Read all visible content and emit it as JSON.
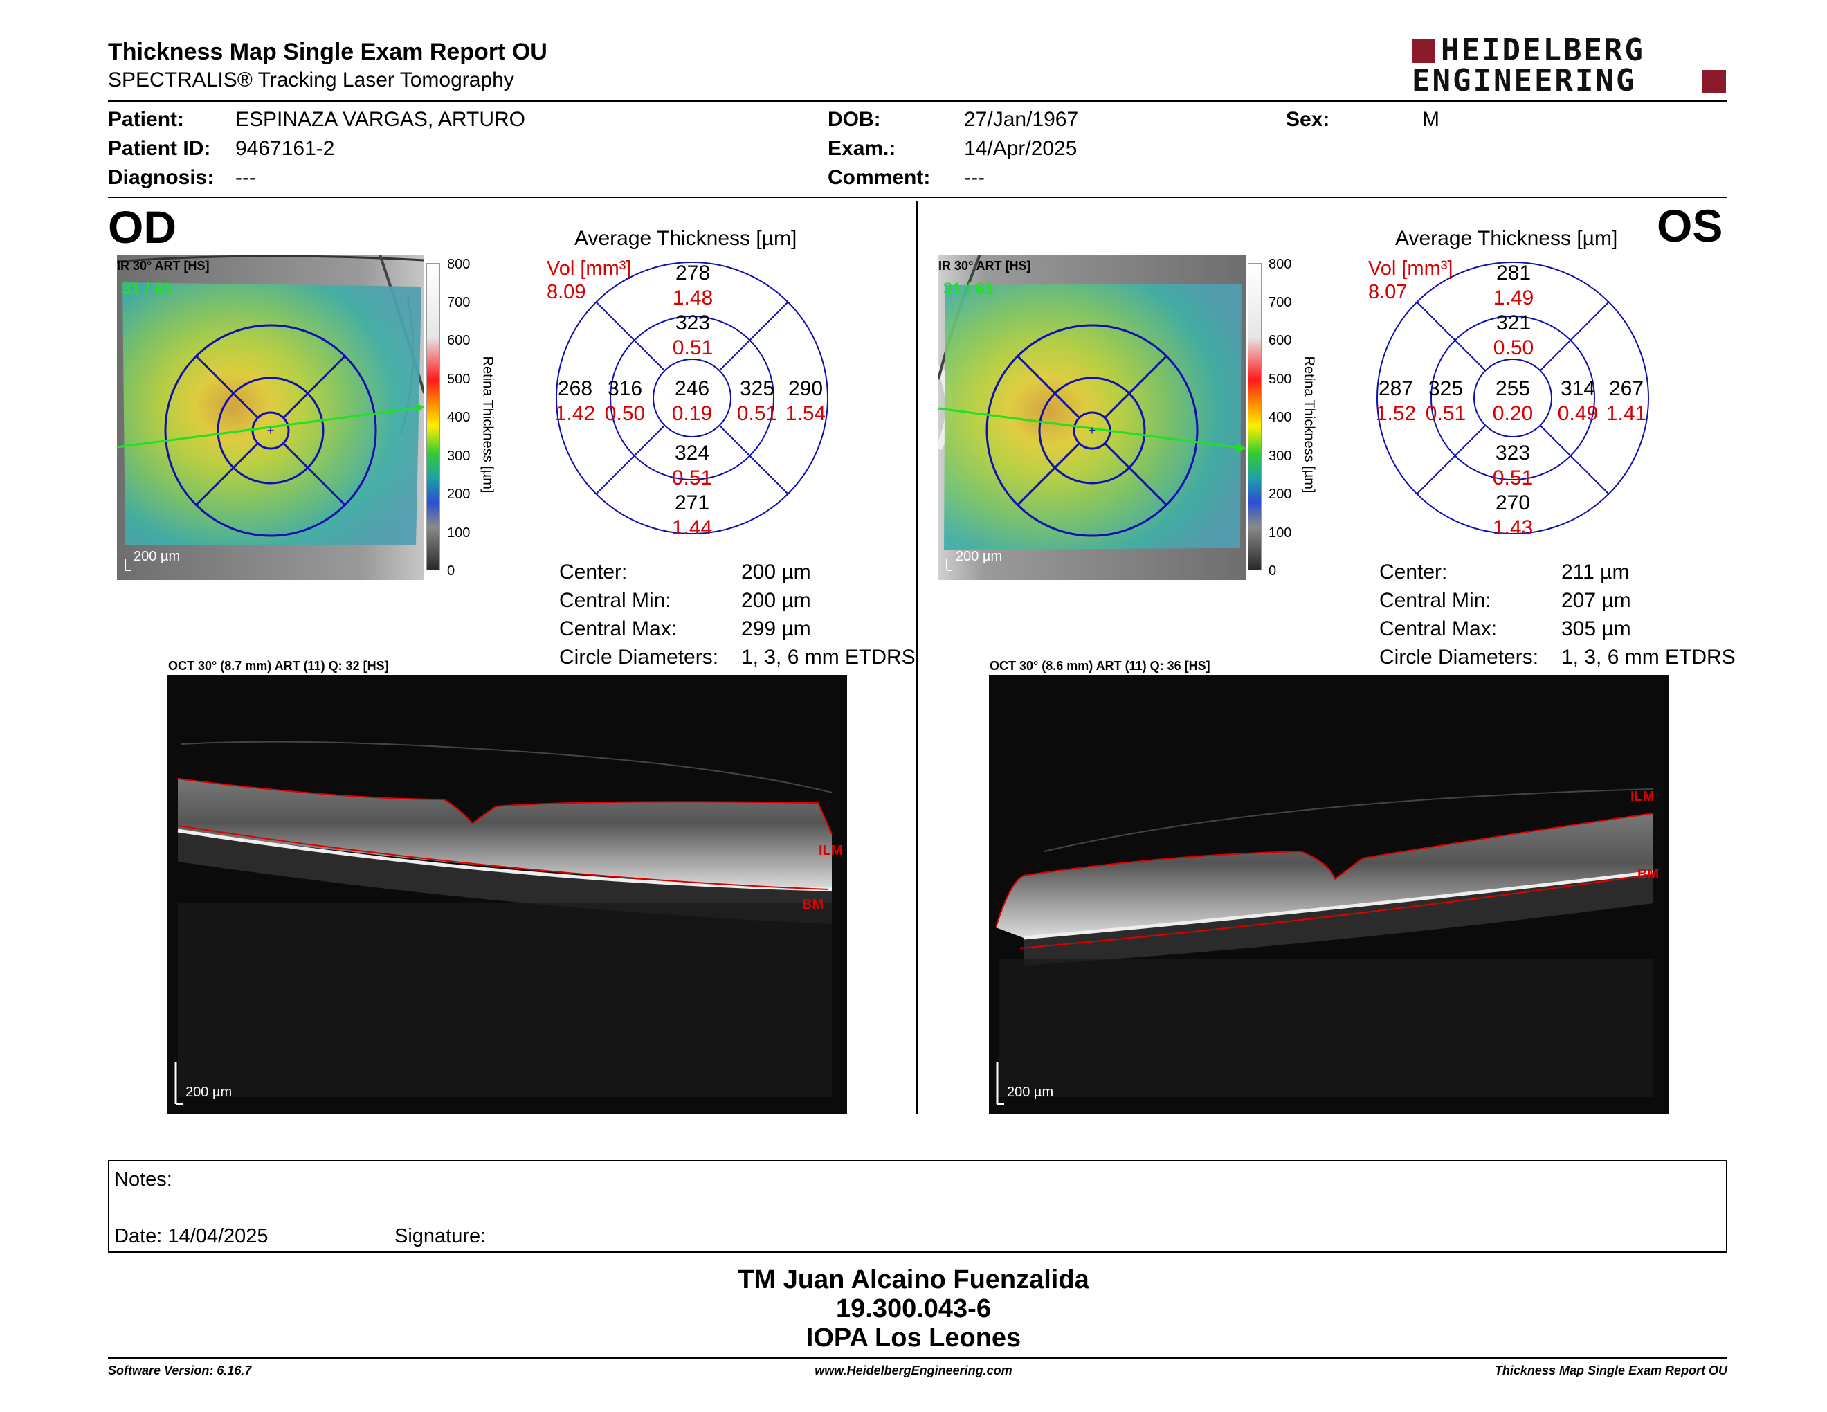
{
  "header": {
    "title": "Thickness Map Single Exam Report OU",
    "subtitle": "SPECTRALIS® Tracking Laser Tomography",
    "brand_line1": "HEIDELBERG",
    "brand_line2": "ENGINEERING",
    "brand_color": "#8b1a2b"
  },
  "patient": {
    "patient_label": "Patient:",
    "patient_value": "ESPINAZA VARGAS, ARTURO",
    "id_label": "Patient ID:",
    "id_value": "9467161-2",
    "diag_label": "Diagnosis:",
    "diag_value": "---",
    "dob_label": "DOB:",
    "dob_value": "27/Jan/1967",
    "exam_label": "Exam.:",
    "exam_value": "14/Apr/2025",
    "comment_label": "Comment:",
    "comment_value": "---",
    "sex_label": "Sex:",
    "sex_value": "M"
  },
  "od": {
    "eye": "OD",
    "ir_label": "IR 30° ART [HS]",
    "frames": "31 / 61",
    "scale": "200 µm",
    "avg_title": "Average Thickness [µm]",
    "vol_label": "Vol [mm³]",
    "vol_total": "8.09",
    "grid": {
      "outer_top": "278",
      "outer_top_v": "1.48",
      "inner_top": "323",
      "inner_top_v": "0.51",
      "outer_left": "268",
      "outer_left_v": "1.42",
      "inner_left": "316",
      "inner_left_v": "0.50",
      "center": "246",
      "center_v": "0.19",
      "inner_right": "325",
      "inner_right_v": "0.51",
      "outer_right": "290",
      "outer_right_v": "1.54",
      "inner_bottom": "324",
      "inner_bottom_v": "0.51",
      "outer_bottom": "271",
      "outer_bottom_v": "1.44"
    },
    "stats": {
      "center_l": "Center:",
      "center_v": "200 µm",
      "min_l": "Central Min:",
      "min_v": "200 µm",
      "max_l": "Central Max:",
      "max_v": "299 µm",
      "circ_l": "Circle Diameters:",
      "circ_v": "1, 3, 6 mm ETDRS"
    },
    "oct_label": "OCT 30° (8.7 mm) ART (11) Q: 32 [HS]",
    "oct_scale": "200 µm",
    "ilm": "ILM",
    "bm": "BM"
  },
  "os": {
    "eye": "OS",
    "ir_label": "IR 30° ART [HS]",
    "frames": "31 / 61",
    "scale": "200 µm",
    "avg_title": "Average Thickness [µm]",
    "vol_label": "Vol [mm³]",
    "vol_total": "8.07",
    "grid": {
      "outer_top": "281",
      "outer_top_v": "1.49",
      "inner_top": "321",
      "inner_top_v": "0.50",
      "outer_left": "287",
      "outer_left_v": "1.52",
      "inner_left": "325",
      "inner_left_v": "0.51",
      "center": "255",
      "center_v": "0.20",
      "inner_right": "314",
      "inner_right_v": "0.49",
      "outer_right": "267",
      "outer_right_v": "1.41",
      "inner_bottom": "323",
      "inner_bottom_v": "0.51",
      "outer_bottom": "270",
      "outer_bottom_v": "1.43"
    },
    "stats": {
      "center_l": "Center:",
      "center_v": "211 µm",
      "min_l": "Central Min:",
      "min_v": "207 µm",
      "max_l": "Central Max:",
      "max_v": "305 µm",
      "circ_l": "Circle Diameters:",
      "circ_v": "1, 3, 6 mm ETDRS"
    },
    "oct_label": "OCT 30° (8.6 mm) ART (11) Q: 36 [HS]",
    "oct_scale": "200 µm",
    "ilm": "ILM",
    "bm": "BM"
  },
  "colorbar": {
    "title": "Retina Thickness [µm]",
    "ticks": [
      "800",
      "700",
      "600",
      "500",
      "400",
      "300",
      "200",
      "100",
      "0"
    ]
  },
  "notes": {
    "notes_label": "Notes:",
    "date_label": "Date: 14/04/2025",
    "signature_label": "Signature:"
  },
  "signature": {
    "line1": "TM Juan Alcaino Fuenzalida",
    "line2": "19.300.043-6",
    "line3": "IOPA Los Leones"
  },
  "footer": {
    "version": "Software Version: 6.16.7",
    "url": "www.HeidelbergEngineering.com",
    "report": "Thickness Map Single Exam Report OU"
  }
}
